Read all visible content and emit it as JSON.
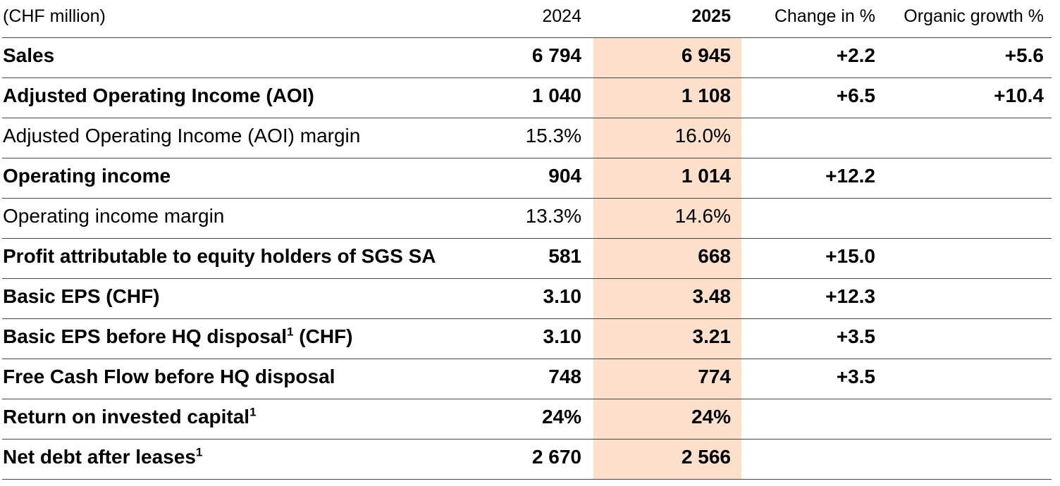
{
  "table": {
    "unit_label": "(CHF million)",
    "col_headers": {
      "y2024": "2024",
      "y2025": "2025",
      "change": "Change in %",
      "organic": "Organic growth %"
    },
    "rows": [
      {
        "label": "Sales",
        "y2024": "6 794",
        "y2025": "6 945",
        "change": "+2.2",
        "organic": "+5.6"
      },
      {
        "label": "Adjusted Operating Income (AOI)",
        "y2024": "1 040",
        "y2025": "1 108",
        "change": "+6.5",
        "organic": "+10.4"
      },
      {
        "label": "Adjusted Operating Income (AOI) margin",
        "y2024": "15.3%",
        "y2025": "16.0%",
        "change": "",
        "organic": ""
      },
      {
        "label": "Operating income",
        "y2024": "904",
        "y2025": "1 014",
        "change": "+12.2",
        "organic": ""
      },
      {
        "label": "Operating income margin",
        "y2024": "13.3%",
        "y2025": "14.6%",
        "change": "",
        "organic": ""
      },
      {
        "label": "Profit attributable to equity holders of SGS SA",
        "y2024": "581",
        "y2025": "668",
        "change": "+15.0",
        "organic": ""
      },
      {
        "label": "Basic EPS (CHF)",
        "y2024": "3.10",
        "y2025": "3.48",
        "change": "+12.3",
        "organic": ""
      },
      {
        "label": "Basic EPS before HQ disposal",
        "sup": "1",
        "label_after": " (CHF)",
        "y2024": "3.10",
        "y2025": "3.21",
        "change": "+3.5",
        "organic": ""
      },
      {
        "label": "Free Cash Flow before HQ disposal",
        "y2024": "748",
        "y2025": "774",
        "change": "+3.5",
        "organic": ""
      },
      {
        "label": "Return on invested capital",
        "sup": "1",
        "y2024": "24%",
        "y2025": "24%",
        "change": "",
        "organic": ""
      },
      {
        "label": "Net debt after leases",
        "sup": "1",
        "y2024": "2 670",
        "y2025": "2 566",
        "change": "",
        "organic": ""
      }
    ]
  },
  "colors": {
    "highlight_2025_column": "#fde0cc",
    "row_line": "#454545",
    "text": "#000000",
    "background": "#ffffff"
  }
}
